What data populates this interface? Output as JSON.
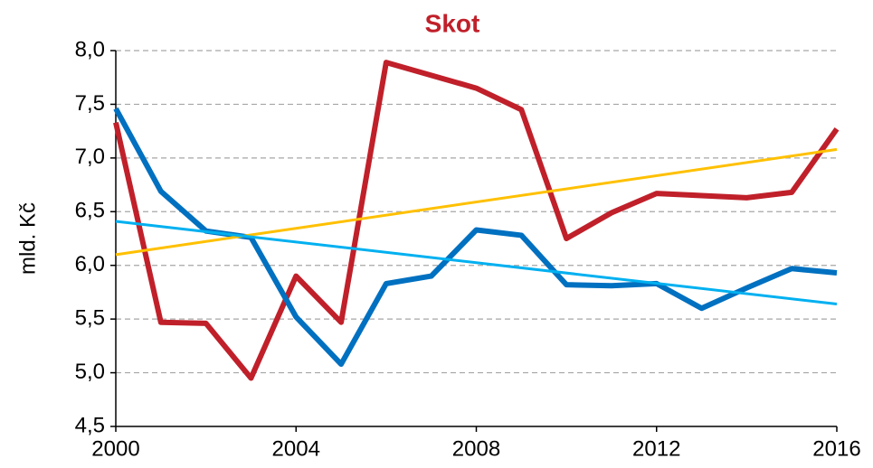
{
  "chart_data": {
    "type": "line",
    "title": "Skot",
    "title_color": "#c0202a",
    "y_label": "mld. Kč",
    "x": [
      2000,
      2001,
      2002,
      2003,
      2004,
      2005,
      2006,
      2007,
      2008,
      2009,
      2010,
      2011,
      2012,
      2013,
      2014,
      2015,
      2016
    ],
    "xlim": [
      2000,
      2016
    ],
    "xticks": [
      2000,
      2004,
      2008,
      2012,
      2016
    ],
    "ylim": [
      4.5,
      8.0
    ],
    "yticks": [
      {
        "value": 4.5,
        "label": "4,5"
      },
      {
        "value": 5.0,
        "label": "5,0"
      },
      {
        "value": 5.5,
        "label": "5,5"
      },
      {
        "value": 6.0,
        "label": "6,0"
      },
      {
        "value": 6.5,
        "label": "6,5"
      },
      {
        "value": 7.0,
        "label": "7,0"
      },
      {
        "value": 7.5,
        "label": "7,5"
      },
      {
        "value": 8.0,
        "label": "8,0"
      }
    ],
    "grid": true,
    "series": [
      {
        "color": "#c0202a",
        "values": [
          7.33,
          5.47,
          5.46,
          4.95,
          5.9,
          5.47,
          7.89,
          7.77,
          7.65,
          7.45,
          6.25,
          6.49,
          6.67,
          6.65,
          6.63,
          6.68,
          7.27
        ]
      },
      {
        "color": "#0070c0",
        "values": [
          7.46,
          6.69,
          6.32,
          6.26,
          5.52,
          5.08,
          5.83,
          5.9,
          6.33,
          6.28,
          5.82,
          5.81,
          5.83,
          5.6,
          5.79,
          5.97,
          5.93
        ]
      },
      {
        "color": "#ffc000",
        "x": [
          2000,
          2016
        ],
        "values": [
          6.1,
          7.08
        ]
      },
      {
        "color": "#00b0f0",
        "x": [
          2000,
          2016
        ],
        "values": [
          6.41,
          5.64
        ]
      }
    ]
  }
}
